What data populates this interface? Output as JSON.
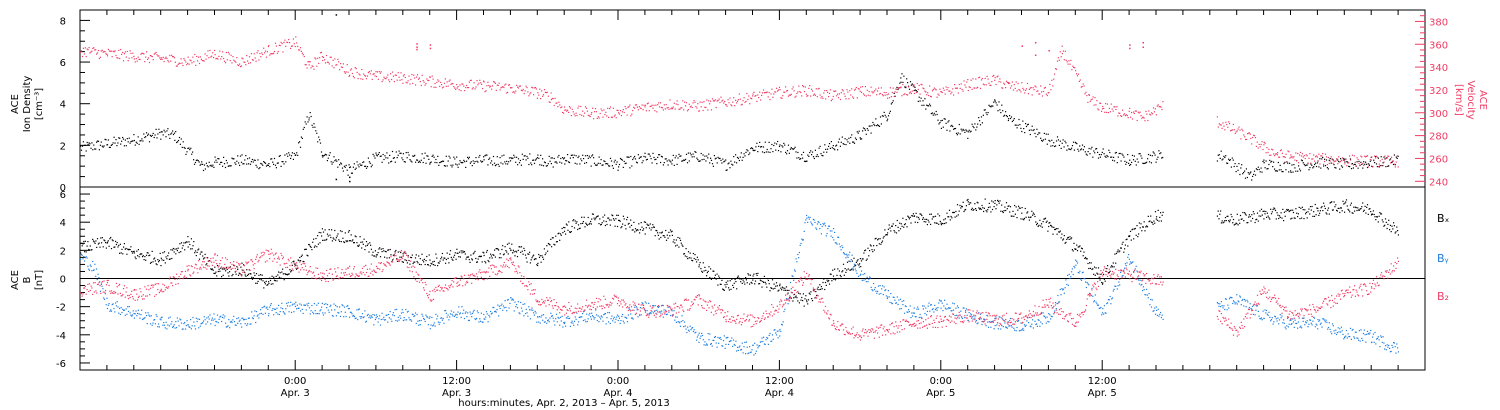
{
  "chart_data": [
    {
      "type": "scatter",
      "panel": "top",
      "ylabel_left": [
        "ACE",
        "Ion Density",
        "[cm⁻³]"
      ],
      "ylabel_right": [
        "ACE",
        "Velocity",
        "[km/s]"
      ],
      "left_ticks": [
        "0",
        "2",
        "4",
        "6",
        "8"
      ],
      "right_ticks": [
        "240",
        "260",
        "280",
        "300",
        "320",
        "340",
        "360",
        "380"
      ],
      "ylim_left": [
        0,
        8.5
      ],
      "ylim_right": [
        235,
        390
      ],
      "x_unit": "hours since Apr. 2, 2013 00:00",
      "xlim": [
        8,
        108
      ],
      "series": [
        {
          "axis": "left",
          "color": "#000000",
          "x": [
            8,
            10,
            12,
            14,
            15,
            17,
            18,
            20,
            22,
            24,
            25,
            26,
            28,
            30,
            32,
            34,
            36,
            38,
            40,
            42,
            43,
            44,
            46,
            48,
            50,
            52,
            54,
            56,
            58,
            60,
            62,
            64,
            66,
            68,
            69,
            70,
            72,
            74,
            76,
            77,
            80,
            82,
            86,
            90,
            93,
            95,
            96,
            98,
            100,
            102,
            104,
            106
          ],
          "y": [
            1.9,
            2.1,
            2.3,
            2.6,
            2.5,
            1.0,
            1.2,
            1.3,
            1.1,
            1.5,
            3.5,
            1.7,
            0.8,
            1.4,
            1.5,
            1.4,
            1.2,
            1.3,
            1.3,
            1.4,
            1.2,
            1.4,
            1.3,
            1.1,
            1.4,
            1.3,
            1.5,
            1.1,
            1.9,
            2.0,
            1.5,
            2.0,
            2.5,
            3.5,
            5.3,
            4.6,
            3.1,
            2.6,
            4.1,
            3.3,
            2.3,
            1.9,
            1.3,
            1.7,
            1.5,
            0.5,
            1.1,
            1.0,
            1.2,
            1.1,
            1.2,
            1.3
          ]
        },
        {
          "axis": "right",
          "color": "#f03c64",
          "x": [
            8,
            10,
            12,
            14,
            16,
            18,
            20,
            22,
            24,
            25,
            26,
            28,
            30,
            32,
            34,
            36,
            38,
            40,
            42,
            43,
            44,
            46,
            48,
            50,
            52,
            54,
            56,
            58,
            60,
            62,
            64,
            66,
            68,
            69,
            70,
            72,
            74,
            76,
            77,
            80,
            81,
            83,
            84,
            86,
            87,
            89,
            90,
            95,
            96,
            97,
            98,
            100,
            102,
            104,
            106
          ],
          "y": [
            355,
            352,
            350,
            348,
            345,
            352,
            345,
            355,
            362,
            340,
            350,
            337,
            332,
            331,
            328,
            325,
            324,
            322,
            318,
            314,
            303,
            300,
            301,
            305,
            308,
            306,
            310,
            314,
            318,
            320,
            315,
            319,
            318,
            320,
            322,
            317,
            325,
            329,
            324,
            318,
            355,
            312,
            305,
            300,
            296,
            310,
            308,
            278,
            270,
            264,
            262,
            260,
            259,
            258,
            258
          ]
        }
      ],
      "extra_points": [
        {
          "axis": "right",
          "color": "#f03c64",
          "x": [
            33,
            33,
            33,
            34,
            34
          ],
          "y": [
            358,
            361,
            356,
            360,
            357
          ]
        },
        {
          "axis": "right",
          "color": "#f03c64",
          "x": [
            86,
            86,
            87,
            87
          ],
          "y": [
            360,
            357,
            362,
            358
          ]
        },
        {
          "axis": "right",
          "color": "#f03c64",
          "x": [
            78,
            79,
            79,
            80
          ],
          "y": [
            359,
            362,
            351,
            355
          ]
        },
        {
          "axis": "left",
          "color": "#000000",
          "x": [
            27,
            27,
            28,
            28
          ],
          "y": [
            8.3,
            0.4,
            0.5,
            0.3
          ]
        }
      ]
    },
    {
      "type": "scatter",
      "panel": "bottom",
      "ylabel_left": [
        "ACE",
        "B",
        "[nT]"
      ],
      "left_ticks": [
        "-6",
        "-4",
        "-2",
        "0",
        "2",
        "4",
        "6"
      ],
      "ylim_left": [
        -6.5,
        6.5
      ],
      "x_unit": "hours since Apr. 2, 2013 00:00",
      "xlim": [
        8,
        108
      ],
      "zero_line": true,
      "series": [
        {
          "name": "B_x",
          "color": "#000000",
          "x": [
            8,
            10,
            12,
            14,
            16,
            18,
            20,
            22,
            24,
            26,
            28,
            30,
            32,
            34,
            36,
            38,
            40,
            42,
            44,
            46,
            48,
            50,
            52,
            54,
            56,
            58,
            60,
            62,
            64,
            66,
            68,
            70,
            72,
            74,
            76,
            78,
            80,
            82,
            84,
            86,
            88,
            90,
            94,
            96,
            98,
            100,
            102,
            104,
            106
          ],
          "y": [
            2.2,
            2.6,
            1.8,
            1.4,
            2.7,
            0.5,
            0.7,
            -0.4,
            1.0,
            3.2,
            3.0,
            1.9,
            1.5,
            1.3,
            1.7,
            1.5,
            2.2,
            1.3,
            3.6,
            4.2,
            4.1,
            3.6,
            3.0,
            1.0,
            -0.5,
            0.1,
            -0.7,
            -1.6,
            0.3,
            1.3,
            3.4,
            4.4,
            4.2,
            5.3,
            5.2,
            4.7,
            3.8,
            2.3,
            0.0,
            3.0,
            4.5,
            4.8,
            4.2,
            4.6,
            4.6,
            4.9,
            5.2,
            4.9,
            3.3
          ]
        },
        {
          "name": "B_y",
          "color": "#1e7ee0",
          "x": [
            8,
            9,
            10,
            12,
            14,
            16,
            18,
            20,
            22,
            24,
            26,
            28,
            30,
            32,
            34,
            36,
            38,
            40,
            42,
            44,
            46,
            48,
            50,
            52,
            54,
            56,
            58,
            60,
            62,
            64,
            65,
            66,
            68,
            70,
            72,
            74,
            76,
            78,
            80,
            82,
            84,
            86,
            88,
            90,
            94,
            96,
            98,
            100,
            102,
            104,
            106
          ],
          "y": [
            1.6,
            0.8,
            -1.8,
            -2.4,
            -3.1,
            -3.2,
            -2.9,
            -3.1,
            -2.2,
            -2.0,
            -2.1,
            -2.3,
            -2.9,
            -2.5,
            -3.1,
            -2.3,
            -2.8,
            -1.7,
            -2.7,
            -3.0,
            -2.6,
            -2.9,
            -2.0,
            -2.4,
            -4.2,
            -4.5,
            -5.0,
            -3.7,
            4.2,
            3.2,
            1.8,
            0.3,
            -1.2,
            -2.5,
            -1.8,
            -2.6,
            -3.1,
            -3.3,
            -2.7,
            1.0,
            -2.5,
            1.5,
            -2.4,
            -3.0,
            -1.5,
            -2.6,
            -3.2,
            -3.1,
            -3.9,
            -4.1,
            -5.0
          ]
        },
        {
          "name": "B_z",
          "color": "#f03c64",
          "x": [
            8,
            10,
            12,
            14,
            16,
            18,
            20,
            22,
            24,
            26,
            28,
            30,
            32,
            34,
            36,
            38,
            40,
            42,
            44,
            46,
            48,
            50,
            52,
            54,
            56,
            58,
            60,
            62,
            64,
            66,
            68,
            70,
            72,
            74,
            76,
            78,
            80,
            82,
            84,
            86,
            88,
            90,
            94,
            96,
            98,
            100,
            102,
            104,
            106
          ],
          "y": [
            -0.8,
            -0.5,
            -1.1,
            -0.7,
            0.6,
            1.4,
            0.6,
            1.8,
            0.9,
            0.2,
            0.5,
            0.7,
            1.7,
            -1.2,
            -0.2,
            0.3,
            1.2,
            -1.4,
            -2.1,
            -1.8,
            -1.5,
            -2.3,
            -2.2,
            -1.5,
            -2.6,
            -3.0,
            -1.9,
            0.3,
            -3.2,
            -4.0,
            -3.6,
            -3.1,
            -3.0,
            -2.6,
            -2.9,
            -2.8,
            -1.7,
            -3.1,
            0.5,
            0.3,
            -0.1,
            -0.3,
            -3.8,
            -0.8,
            -2.6,
            -2.1,
            -1.1,
            -0.6,
            1.2
          ]
        }
      ],
      "legend": [
        "Bₓ",
        "Bᵧ",
        "B₂"
      ]
    }
  ],
  "x_axis": {
    "ticks": [
      {
        "hour": 24,
        "time": "0:00",
        "date": "Apr. 3"
      },
      {
        "hour": 36,
        "time": "12:00",
        "date": "Apr. 3"
      },
      {
        "hour": 48,
        "time": "0:00",
        "date": "Apr. 4"
      },
      {
        "hour": 60,
        "time": "12:00",
        "date": "Apr. 4"
      },
      {
        "hour": 72,
        "time": "0:00",
        "date": "Apr. 5"
      },
      {
        "hour": 84,
        "time": "12:00",
        "date": "Apr. 5"
      }
    ],
    "label": "hours:minutes, Apr.  2, 2013 – Apr.  5, 2013"
  },
  "colors": {
    "axes": "#000000",
    "density": "#000000",
    "velocity": "#f03c64",
    "bx": "#000000",
    "by": "#1e7ee0",
    "bz": "#f03c64"
  }
}
